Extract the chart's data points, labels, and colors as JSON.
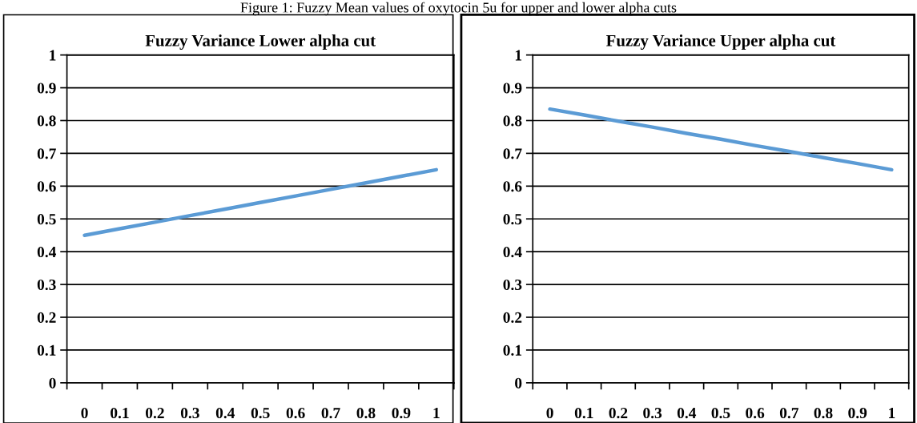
{
  "chart_data": [
    {
      "type": "line",
      "title": "Fuzzy Variance Lower alpha cut",
      "categories": [
        "0",
        "0.1",
        "0.2",
        "0.3",
        "0.4",
        "0.5",
        "0.6",
        "0.7",
        "0.8",
        "0.9",
        "1"
      ],
      "series": [
        {
          "color": "#5b9bd5",
          "values": [
            0.45,
            0.47,
            0.49,
            0.51,
            0.53,
            0.55,
            0.57,
            0.59,
            0.61,
            0.63,
            0.65
          ]
        }
      ],
      "ylim": [
        0,
        1
      ],
      "yticks": [
        0,
        0.1,
        0.2,
        0.3,
        0.4,
        0.5,
        0.6,
        0.7,
        0.8,
        0.9,
        1
      ],
      "grid": "y",
      "marker": "none",
      "line_style": "solid",
      "annotations": [
        "Figure 1: Fuzzy Mean values of oxytocin 5u for upper and lower alpha cuts"
      ]
    },
    {
      "type": "line",
      "title": "Fuzzy Variance Upper alpha cut",
      "categories": [
        "0",
        "0.1",
        "0.2",
        "0.3",
        "0.4",
        "0.5",
        "0.6",
        "0.7",
        "0.8",
        "0.9",
        "1"
      ],
      "series": [
        {
          "color": "#5b9bd5",
          "values": [
            0.835,
            0.817,
            0.798,
            0.78,
            0.761,
            0.743,
            0.724,
            0.706,
            0.687,
            0.669,
            0.65
          ]
        }
      ],
      "ylim": [
        0,
        1
      ],
      "yticks": [
        0,
        0.1,
        0.2,
        0.3,
        0.4,
        0.5,
        0.6,
        0.7,
        0.8,
        0.9,
        1
      ],
      "grid": "y",
      "marker": "none",
      "line_style": "solid"
    }
  ]
}
